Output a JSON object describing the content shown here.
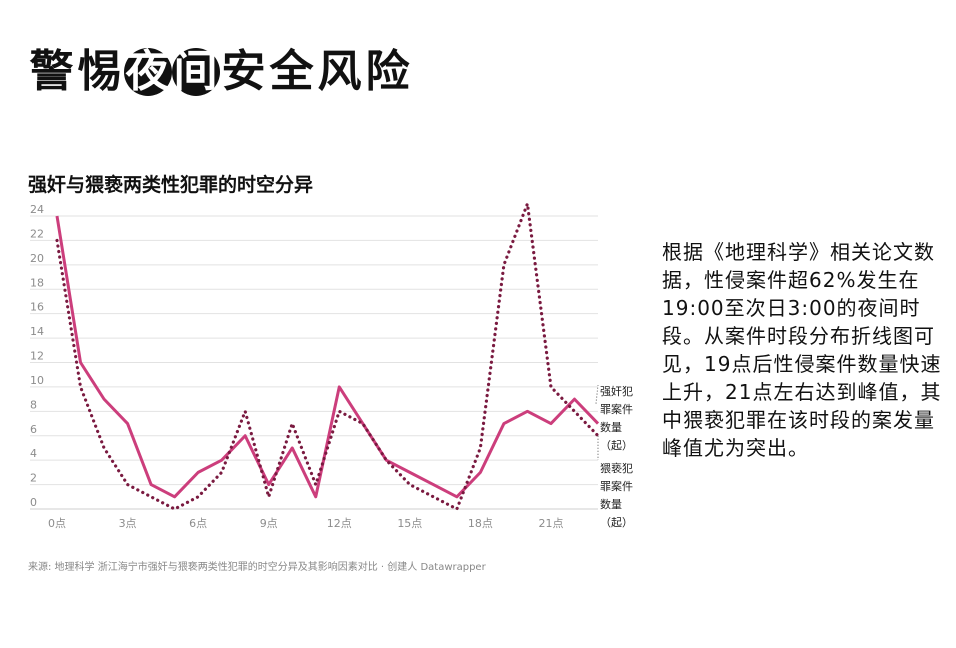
{
  "headline": [
    "警",
    "惕",
    "夜",
    "间",
    "安",
    "全",
    "风",
    "险"
  ],
  "headline_inverted": [
    2,
    3
  ],
  "chart_title": "强奸与猥亵两类性犯罪的时空分异",
  "source": "来源: 地理科学 浙江海宁市强奸与猥亵两类性犯罪的时空分异及其影响因素对比 · 创建人 Datawrapper",
  "side_note": "根据《地理科学》相关论文数据，性侵案件超62%发生在19:00至次日3:00的夜间时段。从案件时段分布折线图可见，19点后性侵案件数量快速上升，21点左右达到峰值，其中猥亵犯罪在该时段的案发量峰值尤为突出。",
  "colors": {
    "rape": "#cc3e7c",
    "molest": "#7a1a40",
    "grid": "#e2e2e2",
    "tick": "#8c8c8c"
  },
  "chart_data": {
    "type": "line",
    "x": [
      0,
      1,
      2,
      3,
      4,
      5,
      6,
      7,
      8,
      9,
      10,
      11,
      12,
      13,
      14,
      15,
      16,
      17,
      18,
      19,
      20,
      21,
      22,
      23
    ],
    "x_tick_values": [
      0,
      3,
      6,
      9,
      12,
      15,
      18,
      21
    ],
    "x_tick_labels": [
      "0点",
      "3点",
      "6点",
      "9点",
      "12点",
      "15点",
      "18点",
      "21点"
    ],
    "y_ticks": [
      0,
      2,
      4,
      6,
      8,
      10,
      12,
      14,
      16,
      18,
      20,
      22,
      24
    ],
    "ylim": [
      0,
      24
    ],
    "xlim": [
      0,
      23
    ],
    "grid": true,
    "series": [
      {
        "name": "强奸犯罪案件数量（起）",
        "label_lines": [
          "强奸犯",
          "罪案件",
          "数量",
          "（起）"
        ],
        "style": "solid",
        "values": [
          24,
          12,
          9,
          7,
          2,
          1,
          3,
          4,
          6,
          2,
          5,
          1,
          10,
          7,
          4,
          3,
          2,
          1,
          3,
          7,
          8,
          7,
          9,
          7
        ]
      },
      {
        "name": "猥亵犯罪案件数量（起）",
        "label_lines": [
          "猥亵犯",
          "罪案件",
          "数量",
          "（起）"
        ],
        "style": "dotted",
        "values": [
          22,
          10,
          5,
          2,
          1,
          0,
          1,
          3,
          8,
          1,
          7,
          2,
          8,
          7,
          4,
          2,
          1,
          0,
          5,
          20,
          25,
          10,
          8,
          6
        ]
      }
    ]
  }
}
